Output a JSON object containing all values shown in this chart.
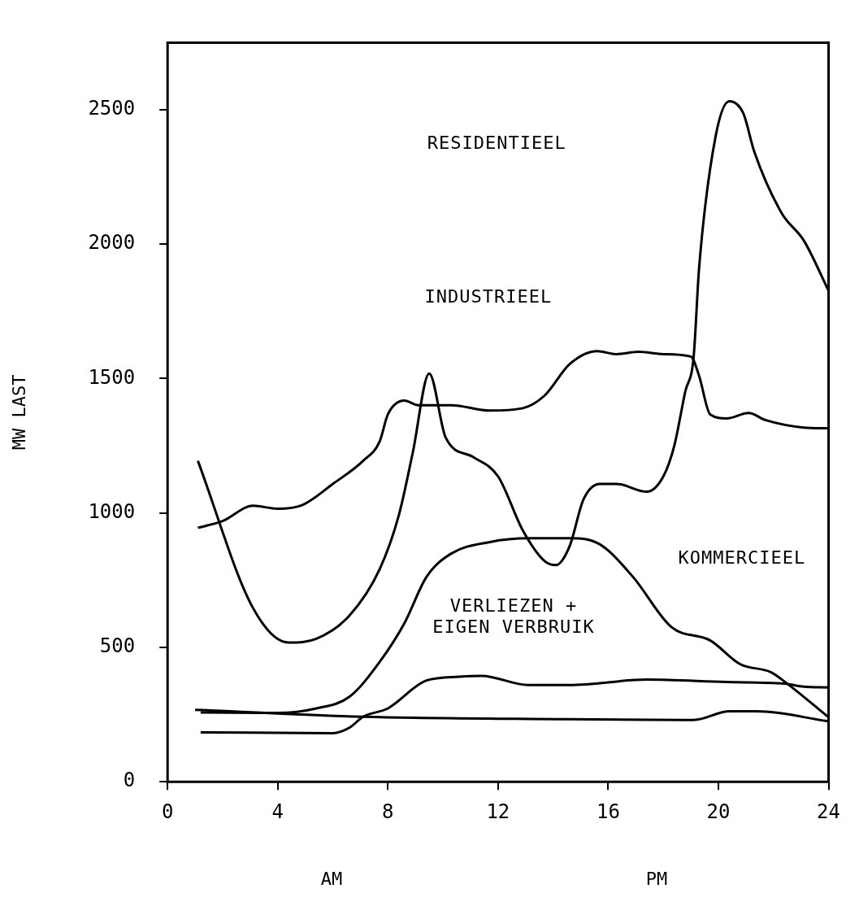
{
  "chart_data": {
    "type": "line",
    "ylabel": "MW LAST",
    "xlim": [
      0,
      24
    ],
    "xticks": [
      0,
      4,
      8,
      12,
      16,
      20,
      24
    ],
    "ylim": [
      0,
      2750
    ],
    "yticks": [
      0,
      500,
      1000,
      1500,
      2000,
      2500
    ],
    "grid": false,
    "legend": false,
    "marker": "none",
    "line_style": "solid",
    "series": [
      {
        "color": "#000000",
        "x": [
          1.1,
          3.1,
          4.4,
          5.4,
          6.6,
          7.7,
          8.4,
          8.9,
          9.5,
          10.1,
          11.1,
          12,
          12.9,
          13.7,
          14.1,
          14.6,
          15.1,
          15.7,
          16.3,
          17.4,
          18,
          18.4,
          18.8,
          19.1,
          19.3,
          19.9,
          20.4,
          20.9,
          21.3,
          22.3,
          23.1,
          24
        ],
        "values": [
          1194,
          647,
          518,
          532,
          618,
          791,
          993,
          1223,
          1519,
          1280,
          1208,
          1136,
          935,
          820,
          806,
          877,
          1050,
          1108,
          1108,
          1079,
          1136,
          1251,
          1453,
          1580,
          1913,
          2402,
          2532,
          2488,
          2345,
          2115,
          2014,
          1827
        ]
      },
      {
        "color": "#000000",
        "x": [
          1.1,
          2,
          3.1,
          4,
          4.9,
          6,
          7.1,
          7.7,
          8,
          8.6,
          9.1,
          10.3,
          11.7,
          12.9,
          13.7,
          14.6,
          15.6,
          16.3,
          17.1,
          18,
          19,
          19.3,
          19.7,
          20.3,
          21.1,
          21.7,
          23.1,
          24
        ],
        "values": [
          945,
          970,
          1027,
          1016,
          1030,
          1108,
          1194,
          1266,
          1367,
          1418,
          1401,
          1401,
          1381,
          1390,
          1438,
          1554,
          1602,
          1591,
          1600,
          1591,
          1582,
          1510,
          1367,
          1352,
          1372,
          1346,
          1318,
          1315
        ]
      },
      {
        "color": "#000000",
        "x": [
          1.2,
          4,
          5.4,
          6.6,
          7.7,
          8.6,
          9.4,
          10.3,
          11.7,
          13.1,
          14.6,
          15.7,
          16.9,
          18.3,
          19.7,
          20.8,
          21.9,
          22.5,
          24
        ],
        "values": [
          258,
          256,
          273,
          316,
          446,
          590,
          762,
          849,
          892,
          906,
          906,
          883,
          762,
          575,
          526,
          437,
          408,
          365,
          240
        ]
      },
      {
        "color": "#000000",
        "x": [
          1.2,
          6,
          6.6,
          7.1,
          8,
          9.4,
          10.6,
          11.4,
          13.1,
          14.6,
          17.4,
          20.3,
          22.4,
          23.1,
          24
        ],
        "values": [
          184,
          181,
          201,
          242,
          273,
          377,
          391,
          394,
          360,
          360,
          380,
          371,
          365,
          354,
          351
        ]
      },
      {
        "color": "#000000",
        "x": [
          1.0,
          7.1,
          14.6,
          19.1,
          20.4,
          21.4,
          24
        ],
        "values": [
          268,
          242,
          233,
          230,
          262,
          262,
          225
        ]
      }
    ],
    "annotations": [
      "RESIDENTIEEL",
      "INDUSTRIEEL",
      "KOMMERCIEEL",
      "VERLIEZEN + EIGEN VERBRUIK",
      "AM",
      "PM"
    ]
  }
}
